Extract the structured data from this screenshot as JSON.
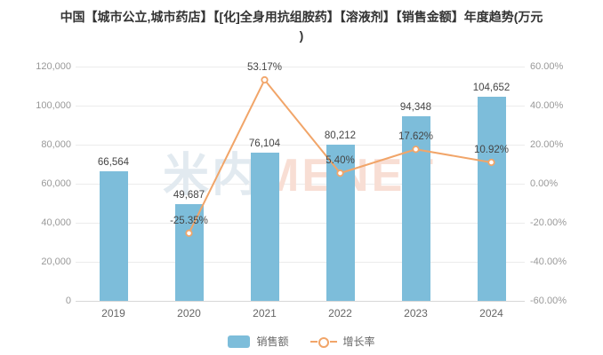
{
  "title": {
    "line1": "中国【城市公立,城市药店】【[化]全身用抗组胺药】【溶液剂】【销售金额】年度趋势(万元",
    "line2": ")"
  },
  "watermark": {
    "cjk": "米内",
    "latin": "MENET"
  },
  "colors": {
    "bar": "#7dbdda",
    "line": "#f1a569",
    "marker_fill": "#ffffff",
    "grid": "#ececec",
    "axis_line": "#d8d8d8",
    "tick_label": "#999999",
    "category_label": "#666666",
    "data_label": "#454545",
    "title_text": "#333333",
    "watermark_cjk": "#e2eaf0",
    "watermark_latin": "#f8ded4"
  },
  "legend": {
    "items": [
      {
        "label": "销售额",
        "marker": "bar-swatch"
      },
      {
        "label": "增长率",
        "marker": "line-circle"
      }
    ]
  },
  "chart_data": {
    "type": "combo_bar_line",
    "title": "中国【城市公立,城市药店】【[化]全身用抗组胺药】【溶液剂】【销售金额】年度趋势(万元)",
    "categories": [
      "2019",
      "2020",
      "2021",
      "2022",
      "2023",
      "2024"
    ],
    "series": [
      {
        "name": "销售额",
        "type": "bar",
        "y_axis": "left",
        "values": [
          66564,
          49687,
          76104,
          80212,
          94348,
          104652
        ],
        "labels": [
          "66,564",
          "49,687",
          "76,104",
          "80,212",
          "94,348",
          "104,652"
        ]
      },
      {
        "name": "增长率",
        "type": "line",
        "y_axis": "right",
        "values": [
          null,
          -25.35,
          53.17,
          5.4,
          17.62,
          10.92
        ],
        "labels": [
          null,
          "-25.35%",
          "53.17%",
          "5.40%",
          "17.62%",
          "10.92%"
        ]
      }
    ],
    "left_axis": {
      "min": 0,
      "max": 120000,
      "tick_step": 20000,
      "tick_labels": [
        "0",
        "20,000",
        "40,000",
        "60,000",
        "80,000",
        "100,000",
        "120,000"
      ]
    },
    "right_axis": {
      "min": -60,
      "max": 60,
      "tick_step": 20,
      "tick_labels": [
        "-60.00%",
        "-40.00%",
        "-20.00%",
        "0.00%",
        "20.00%",
        "40.00%",
        "60.00%"
      ]
    },
    "grid": true,
    "legend_position": "bottom"
  }
}
